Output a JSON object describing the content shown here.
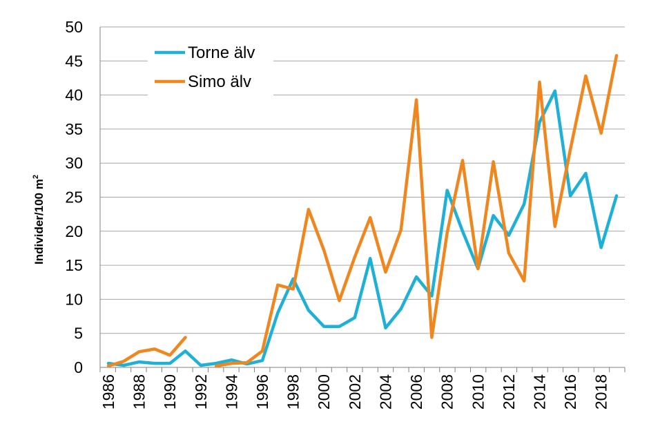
{
  "chart_data": {
    "type": "line",
    "title": "",
    "xlabel": "",
    "ylabel": "Individer/100 m",
    "ylabel_superscript": "2",
    "x": [
      1986,
      1987,
      1988,
      1989,
      1990,
      1991,
      1992,
      1993,
      1994,
      1995,
      1996,
      1997,
      1998,
      1999,
      2000,
      2001,
      2002,
      2003,
      2004,
      2005,
      2006,
      2007,
      2008,
      2009,
      2010,
      2011,
      2012,
      2013,
      2014,
      2015,
      2016,
      2017,
      2018,
      2019
    ],
    "x_tick_labels": [
      "1986",
      "1988",
      "1990",
      "1992",
      "1994",
      "1996",
      "1998",
      "2000",
      "2002",
      "2004",
      "2006",
      "2008",
      "2010",
      "2012",
      "2014",
      "2016",
      "2018"
    ],
    "y_tick_labels": [
      "0",
      "5",
      "10",
      "15",
      "20",
      "25",
      "30",
      "35",
      "40",
      "45",
      "50"
    ],
    "ylim": [
      0,
      50
    ],
    "grid": "horizontal",
    "legend_position": "top-left",
    "series": [
      {
        "name": "Torne älv",
        "color": "#1fb0d6",
        "values": [
          0.6,
          0.3,
          0.8,
          0.6,
          0.6,
          2.4,
          0.3,
          0.6,
          1.1,
          0.5,
          1.0,
          8.0,
          13.0,
          8.4,
          6.0,
          6.0,
          7.3,
          16.0,
          5.8,
          8.6,
          13.3,
          10.5,
          26.0,
          20.0,
          14.5,
          22.3,
          19.4,
          24.0,
          36.0,
          40.6,
          25.2,
          28.5,
          17.6,
          25.2
        ]
      },
      {
        "name": "Simo älv",
        "color": "#f0861e",
        "values": [
          0.2,
          0.9,
          2.3,
          2.7,
          1.8,
          4.4,
          null,
          0.2,
          0.6,
          0.7,
          2.4,
          12.1,
          11.5,
          23.2,
          17.2,
          9.8,
          16.2,
          22.0,
          14.0,
          20.2,
          39.3,
          4.4,
          19.8,
          30.4,
          14.5,
          30.2,
          16.8,
          12.7,
          41.9,
          20.7,
          32.0,
          42.8,
          34.4,
          45.8
        ]
      }
    ]
  }
}
